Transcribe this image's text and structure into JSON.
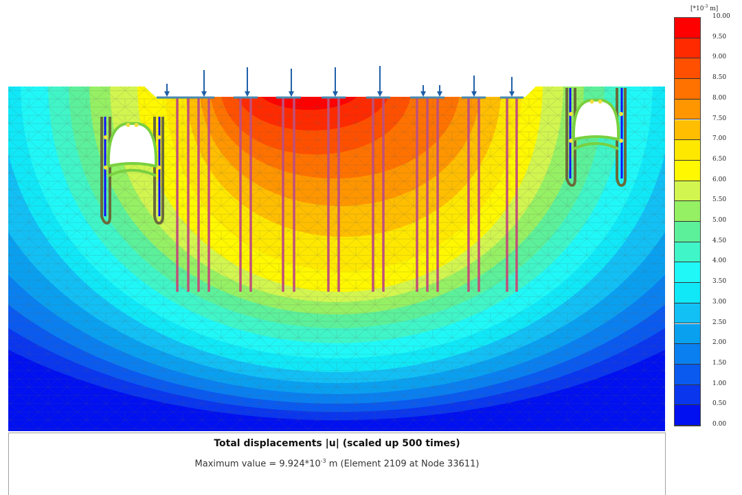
{
  "legend": {
    "unit_prefix": "[*10",
    "unit_exp": "-3",
    "unit_suffix": " m]",
    "ticks": [
      "10.00",
      "9.50",
      "9.00",
      "8.50",
      "8.00",
      "7.50",
      "7.00",
      "6.50",
      "6.00",
      "5.50",
      "5.00",
      "4.50",
      "4.00",
      "3.50",
      "3.00",
      "2.50",
      "2.00",
      "1.50",
      "1.00",
      "0.50",
      "0.00"
    ],
    "colors": [
      "#ff0000",
      "#ff2a00",
      "#ff5000",
      "#ff7200",
      "#ff9600",
      "#ffbe00",
      "#ffe800",
      "#fff800",
      "#d2f550",
      "#96f064",
      "#5cf09a",
      "#40f5c8",
      "#20f8f8",
      "#10e8f8",
      "#12c0f5",
      "#0aa0f0",
      "#0a80f0",
      "#0a5af0",
      "#0a36ee",
      "#0010f0"
    ]
  },
  "caption": {
    "title": "Total displacements |u| (scaled up 500 times)",
    "max_prefix": "Maximum value = 9.924*10",
    "max_exp": "-3",
    "max_suffix": " m (Element 2109 at Node 33611)"
  }
}
